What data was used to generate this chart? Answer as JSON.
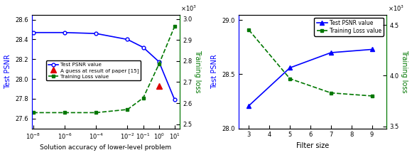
{
  "left": {
    "x": [
      1e-08,
      1e-06,
      0.0001,
      0.01,
      0.1,
      1.0,
      10.0
    ],
    "psnr": [
      28.47,
      28.47,
      28.46,
      28.4,
      28.32,
      28.175,
      27.79
    ],
    "loss": [
      2.555,
      2.555,
      2.555,
      2.57,
      2.625,
      2.785,
      2.965
    ],
    "red_x": [
      1.0
    ],
    "red_y": [
      27.93
    ],
    "xlabel": "Solution accuracy of lower-level problem",
    "ylabel_left": "Test PSNR",
    "ylabel_right": "Training loss",
    "ylim_left": [
      27.5,
      28.65
    ],
    "ylim_right": [
      2.48,
      3.02
    ],
    "legend_psnr": "Test PSNR value",
    "legend_paper": "A guess at result of paper [15]",
    "legend_loss": "Training Loss value",
    "yticks_left": [
      27.6,
      27.8,
      28.0,
      28.2,
      28.4,
      28.6
    ],
    "yticks_right": [
      2.5,
      2.6,
      2.7,
      2.8,
      2.9,
      3.0
    ],
    "xticks": [
      1e-08,
      1e-06,
      0.0001,
      0.01,
      0.1,
      1.0,
      10.0
    ]
  },
  "right": {
    "x": [
      3,
      5,
      7,
      9
    ],
    "psnr": [
      28.21,
      28.56,
      28.7,
      28.73
    ],
    "loss": [
      4.45,
      3.97,
      3.83,
      3.8
    ],
    "xlabel": "Filter size",
    "ylabel_left": "Test PSNR",
    "ylabel_right": "Training loss",
    "ylim_left": [
      28.0,
      29.05
    ],
    "ylim_right": [
      3.48,
      4.6
    ],
    "legend_psnr": "Test PSNR value",
    "legend_loss": "Training Loss value",
    "yticks_left": [
      28.0,
      28.5,
      29.0
    ],
    "yticks_right": [
      3.5,
      4.0,
      4.5
    ],
    "xticks": [
      3,
      4,
      5,
      6,
      7,
      8,
      9
    ]
  },
  "blue": "#0000FF",
  "green": "#007700",
  "red": "#DD0000",
  "bg": "#ffffff"
}
